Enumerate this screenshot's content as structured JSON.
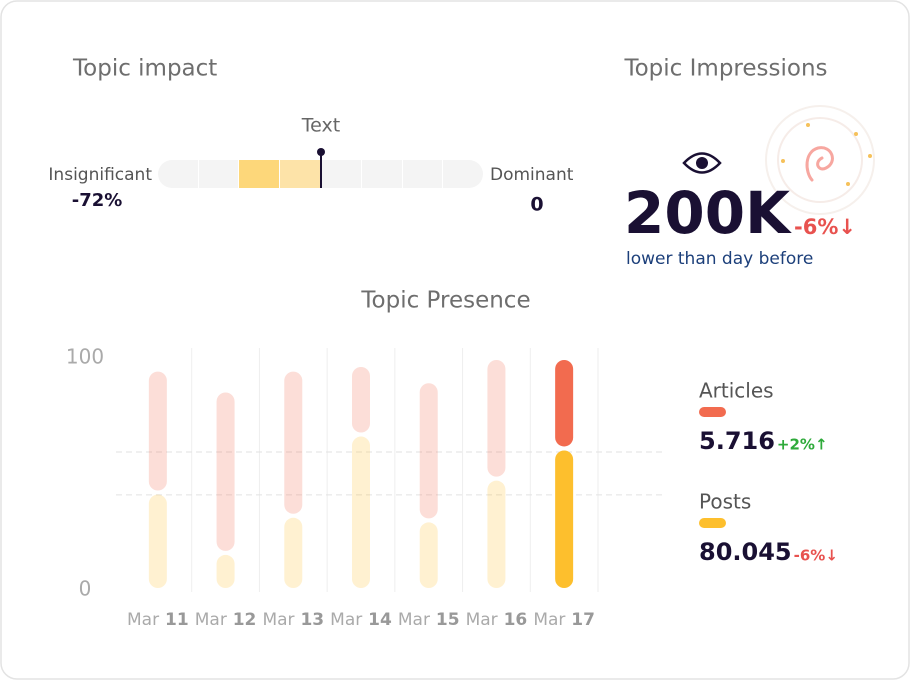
{
  "impact": {
    "title": "Topic impact",
    "marker_label": "Text",
    "min_label": "Insignificant",
    "min_value": "-72%",
    "max_label": "Dominant",
    "max_value": "0"
  },
  "impressions": {
    "title": "Topic Impressions",
    "value": "200K",
    "change": "-6%↓",
    "note": "lower than day before"
  },
  "chart_data": {
    "type": "bar",
    "stacked": true,
    "title": "Topic Presence",
    "categories": [
      "Mar 11",
      "Mar 12",
      "Mar 13",
      "Mar 14",
      "Mar 15",
      "Mar 16",
      "Mar 17"
    ],
    "series": [
      {
        "name": "Articles",
        "color": "#f26b4f",
        "values": [
          53,
          70,
          63,
          30,
          60,
          52,
          39
        ],
        "total": "5.716",
        "change": "+2%↑"
      },
      {
        "name": "Posts",
        "color": "#fdbf2d",
        "values": [
          42,
          16,
          32,
          67,
          30,
          48,
          61
        ],
        "total": "80.045",
        "change": "-6%↓"
      }
    ],
    "ylim": [
      0,
      100
    ],
    "yticks": [
      0,
      100
    ],
    "reference_lines": [
      59.5,
      41
    ]
  }
}
